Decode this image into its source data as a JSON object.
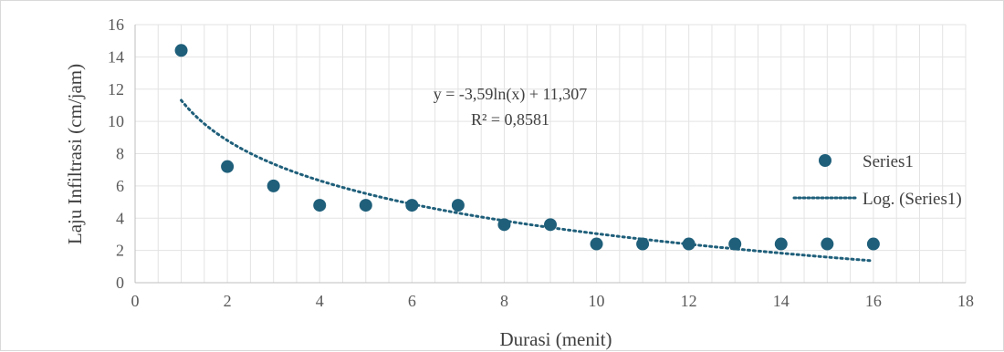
{
  "chart_data": {
    "type": "scatter",
    "xlabel": "Durasi (menit)",
    "ylabel": "Laju Infiltrasi (cm/jam)",
    "xlim": [
      0,
      18
    ],
    "ylim": [
      0,
      16
    ],
    "xticks": [
      0,
      2,
      4,
      6,
      8,
      10,
      12,
      14,
      16,
      18
    ],
    "yticks": [
      0,
      2,
      4,
      6,
      8,
      10,
      12,
      14,
      16
    ],
    "x_minor_step": 0.5,
    "y_major_step": 2,
    "grid": true,
    "legend_position": "right",
    "series": [
      {
        "name": "Series1",
        "color": "#1f5f7a",
        "marker": "circle",
        "x": [
          1,
          2,
          3,
          4,
          5,
          6,
          7,
          8,
          9,
          10,
          11,
          12,
          13,
          14,
          15,
          16
        ],
        "y": [
          14.4,
          7.2,
          6.0,
          4.8,
          4.8,
          4.8,
          4.8,
          3.6,
          3.6,
          2.4,
          2.4,
          2.4,
          2.4,
          2.4,
          2.4,
          2.4
        ]
      }
    ],
    "trendline": {
      "name": "Log. (Series1)",
      "kind": "logarithmic",
      "coef_a": -3.59,
      "coef_b": 11.307,
      "x_range": [
        1,
        16
      ],
      "color": "#1f5f7a",
      "style": "dotted",
      "equation_label": "y = -3,59ln(x) + 11,307",
      "r2_label": "R² = 0,8581"
    }
  }
}
